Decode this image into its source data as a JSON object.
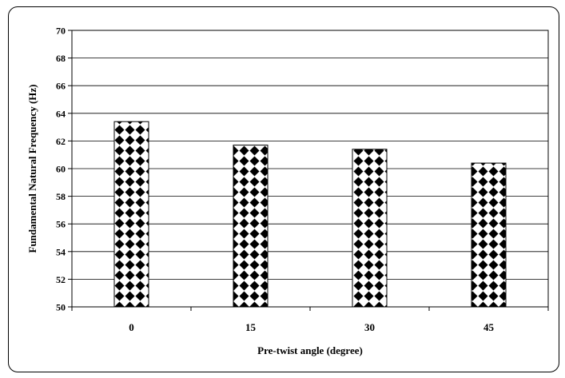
{
  "chart_data": {
    "type": "bar",
    "categories": [
      "0",
      "15",
      "30",
      "45"
    ],
    "values": [
      63.4,
      61.7,
      61.4,
      60.4
    ],
    "title": "",
    "xlabel": "Pre-twist angle (degree)",
    "ylabel": "Fundamental Natural Frequency (Hz)",
    "ylim": [
      50,
      70
    ],
    "yticks": [
      "50",
      "52",
      "54",
      "56",
      "58",
      "60",
      "62",
      "64",
      "66",
      "68",
      "70"
    ],
    "grid": true,
    "legend": "none",
    "bar_pattern": "black diamonds on white",
    "colors": {
      "bar_fill": "#ffffff",
      "pattern": "#000000",
      "gridline": "#000000"
    }
  }
}
